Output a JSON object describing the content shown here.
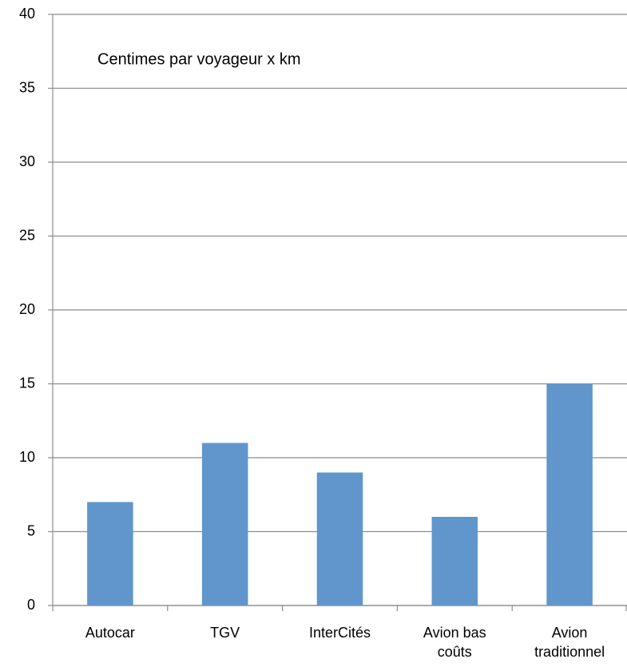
{
  "chart_data": {
    "type": "bar",
    "title": "Centimes par voyageur x km",
    "categories": [
      "Autocar",
      "TGV",
      "InterCités",
      "Avion bas coûts",
      "Avion traditionnel"
    ],
    "values": [
      7,
      11,
      9,
      6,
      15
    ],
    "color": "#6096cc",
    "ylim": [
      0,
      40
    ],
    "yticks": [
      0,
      5,
      10,
      15,
      20,
      25,
      30,
      35,
      40
    ],
    "grid": true
  }
}
